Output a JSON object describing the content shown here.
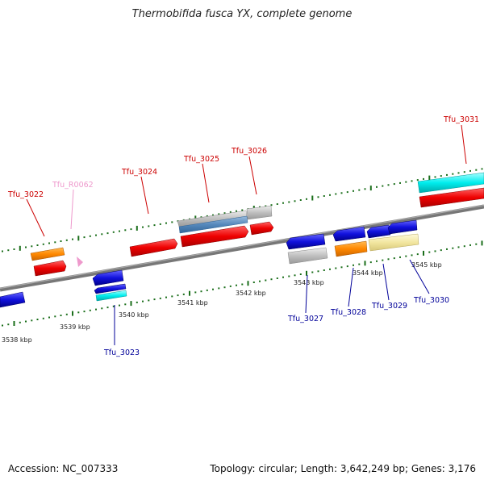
{
  "title": "Thermobifida fusca YX, complete genome",
  "footer": {
    "accession": "Accession: NC_007333",
    "topology": "Topology: circular; Length: 3,642,249 bp; Genes: 3,176"
  },
  "scale_labels": [
    "3538 kbp",
    "3539 kbp",
    "3540 kbp",
    "3541 kbp",
    "3542 kbp",
    "3543 kbp",
    "3544 kbp",
    "3545 kbp"
  ],
  "genes": [
    {
      "id": "Tfu_3022",
      "color": "#cc0000"
    },
    {
      "id": "Tfu_R0062",
      "color": "#ee99cc"
    },
    {
      "id": "Tfu_3024",
      "color": "#cc0000"
    },
    {
      "id": "Tfu_3025",
      "color": "#cc0000"
    },
    {
      "id": "Tfu_3026",
      "color": "#cc0000"
    },
    {
      "id": "Tfu_3031",
      "color": "#cc0000"
    },
    {
      "id": "Tfu_3023",
      "color": "#000099"
    },
    {
      "id": "Tfu_3027",
      "color": "#000099"
    },
    {
      "id": "Tfu_3028",
      "color": "#000099"
    },
    {
      "id": "Tfu_3029",
      "color": "#000099"
    },
    {
      "id": "Tfu_3030",
      "color": "#000099"
    }
  ]
}
